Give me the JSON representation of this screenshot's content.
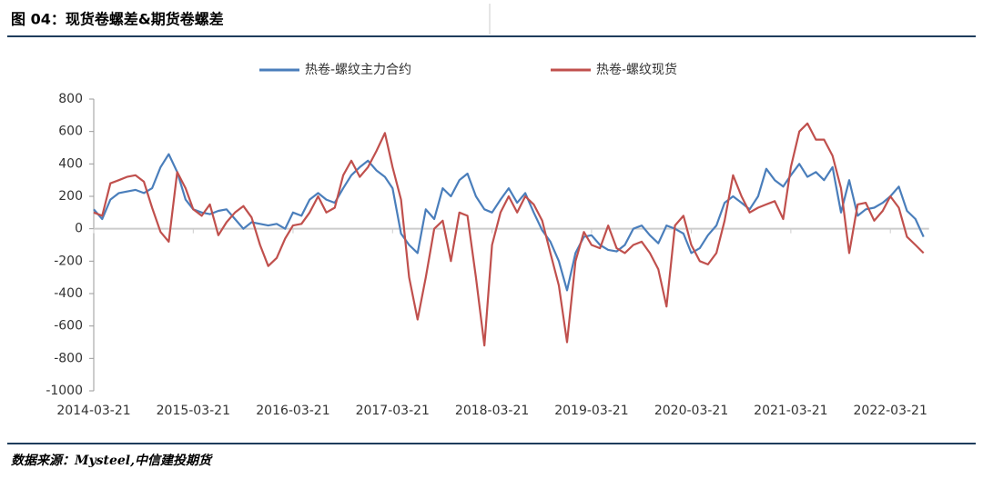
{
  "chart_data": {
    "type": "line",
    "title": "图 04：现货卷螺差&期货卷螺差",
    "source": "数据来源：Mysteel,中信建投期货",
    "x": [
      "2014-03-21",
      "2014-04-21",
      "2014-05-21",
      "2014-06-21",
      "2014-07-21",
      "2014-08-21",
      "2014-09-21",
      "2014-10-21",
      "2014-11-21",
      "2014-12-21",
      "2015-01-21",
      "2015-02-21",
      "2015-03-21",
      "2015-04-21",
      "2015-05-21",
      "2015-06-21",
      "2015-07-21",
      "2015-08-21",
      "2015-09-21",
      "2015-10-21",
      "2015-11-21",
      "2015-12-21",
      "2016-01-21",
      "2016-02-21",
      "2016-03-21",
      "2016-04-21",
      "2016-05-21",
      "2016-06-21",
      "2016-07-21",
      "2016-08-21",
      "2016-09-21",
      "2016-10-21",
      "2016-11-21",
      "2016-12-21",
      "2017-01-21",
      "2017-02-21",
      "2017-03-21",
      "2017-04-21",
      "2017-05-21",
      "2017-06-21",
      "2017-07-21",
      "2017-08-21",
      "2017-09-21",
      "2017-10-21",
      "2017-11-21",
      "2017-12-21",
      "2018-01-21",
      "2018-02-21",
      "2018-03-21",
      "2018-04-21",
      "2018-05-21",
      "2018-06-21",
      "2018-07-21",
      "2018-08-21",
      "2018-09-21",
      "2018-10-21",
      "2018-11-21",
      "2018-12-21",
      "2019-01-21",
      "2019-02-21",
      "2019-03-21",
      "2019-04-21",
      "2019-05-21",
      "2019-06-21",
      "2019-07-21",
      "2019-08-21",
      "2019-09-21",
      "2019-10-21",
      "2019-11-21",
      "2019-12-21",
      "2020-01-21",
      "2020-02-21",
      "2020-03-21",
      "2020-04-21",
      "2020-05-21",
      "2020-06-21",
      "2020-07-21",
      "2020-08-21",
      "2020-09-21",
      "2020-10-21",
      "2020-11-21",
      "2020-12-21",
      "2021-01-21",
      "2021-02-21",
      "2021-03-21",
      "2021-04-21",
      "2021-05-21",
      "2021-06-21",
      "2021-07-21",
      "2021-08-21",
      "2021-09-21",
      "2021-10-21",
      "2021-11-21",
      "2021-12-21",
      "2022-01-21",
      "2022-02-21",
      "2022-03-21",
      "2022-04-21",
      "2022-05-21",
      "2022-06-21",
      "2022-07-21"
    ],
    "series": [
      {
        "name": "热卷-螺纹主力合约",
        "color": "#4a7ebb",
        "values": [
          120,
          60,
          180,
          220,
          230,
          240,
          220,
          250,
          380,
          460,
          350,
          180,
          120,
          100,
          90,
          110,
          120,
          60,
          0,
          40,
          30,
          20,
          30,
          0,
          100,
          80,
          180,
          220,
          180,
          160,
          250,
          330,
          380,
          420,
          360,
          320,
          250,
          -30,
          -100,
          -150,
          120,
          60,
          250,
          200,
          300,
          340,
          200,
          120,
          100,
          180,
          250,
          160,
          220,
          100,
          -10,
          -80,
          -200,
          -380,
          -150,
          -50,
          -40,
          -100,
          -130,
          -140,
          -100,
          0,
          20,
          -40,
          -90,
          20,
          0,
          -30,
          -150,
          -120,
          -40,
          20,
          160,
          200,
          160,
          120,
          200,
          370,
          300,
          260,
          330,
          400,
          320,
          350,
          300,
          380,
          100,
          300,
          80,
          120,
          130,
          160,
          200,
          260,
          110,
          60,
          -50
        ]
      },
      {
        "name": "热卷-螺纹现货",
        "color": "#c0504d",
        "values": [
          100,
          80,
          280,
          300,
          320,
          330,
          290,
          130,
          -20,
          -80,
          350,
          250,
          120,
          80,
          150,
          -40,
          40,
          100,
          140,
          70,
          -100,
          -230,
          -180,
          -60,
          20,
          30,
          100,
          200,
          100,
          130,
          330,
          420,
          320,
          380,
          480,
          590,
          380,
          180,
          -300,
          -560,
          -300,
          0,
          50,
          -200,
          100,
          80,
          -300,
          -720,
          -100,
          100,
          200,
          100,
          200,
          150,
          50,
          -150,
          -350,
          -700,
          -200,
          -20,
          -100,
          -120,
          20,
          -120,
          -150,
          -100,
          -80,
          -150,
          -250,
          -480,
          20,
          80,
          -100,
          -200,
          -220,
          -150,
          50,
          330,
          200,
          100,
          130,
          150,
          170,
          60,
          380,
          600,
          650,
          550,
          550,
          450,
          250,
          -150,
          150,
          160,
          50,
          110,
          200,
          130,
          -50,
          -100,
          -150
        ]
      }
    ],
    "xlim": [
      "2014-03-21",
      "2022-08-10"
    ],
    "xticks": [
      "2014-03-21",
      "2015-03-21",
      "2016-03-21",
      "2017-03-21",
      "2018-03-21",
      "2019-03-21",
      "2020-03-21",
      "2021-03-21",
      "2022-03-21"
    ],
    "ylim": [
      -1000,
      800
    ],
    "yticks": [
      -1000,
      -800,
      -600,
      -400,
      -200,
      0,
      200,
      400,
      600,
      800
    ],
    "legend": "top"
  }
}
